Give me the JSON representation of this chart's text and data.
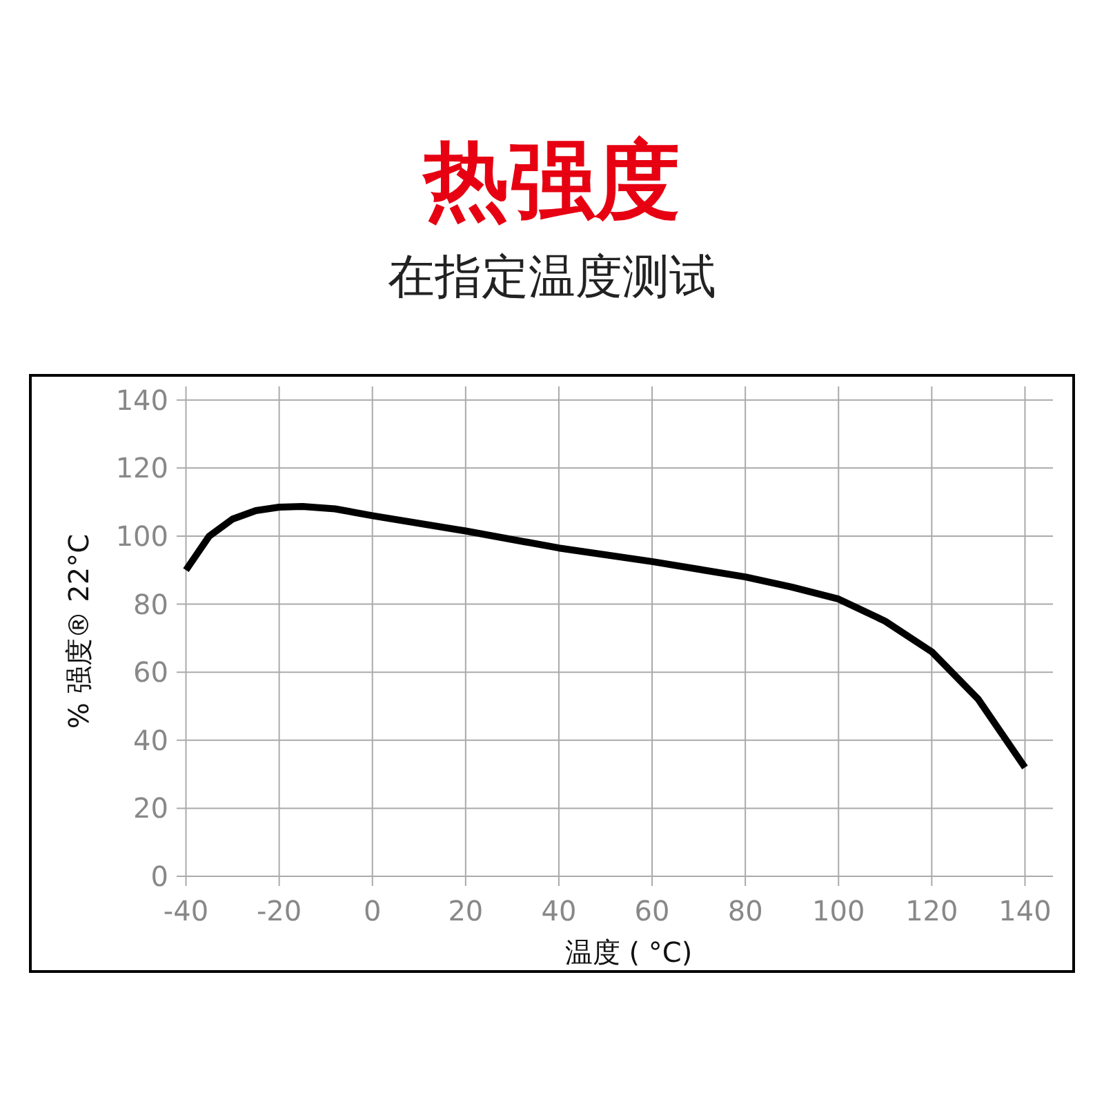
{
  "chart_data": {
    "type": "line",
    "title": "热强度",
    "subtitle": "在指定温度测试",
    "xlabel": "温度 ( °C)",
    "ylabel": "% 强度® 22°C",
    "x": [
      -40,
      -35,
      -30,
      -25,
      -20,
      -15,
      -10,
      -8,
      0,
      20,
      40,
      60,
      80,
      90,
      100,
      110,
      120,
      130,
      140
    ],
    "series": [
      {
        "color": "#000000",
        "values": [
          90,
          100,
          105,
          107.5,
          108.5,
          108.7,
          108.2,
          108,
          106,
          101.5,
          96.5,
          92.5,
          88,
          85,
          81.5,
          75,
          66,
          52,
          32
        ]
      }
    ],
    "xlim": [
      -42,
      146
    ],
    "ylim": [
      0,
      144
    ],
    "xticks": [
      -40,
      -20,
      0,
      20,
      40,
      60,
      80,
      100,
      120,
      140
    ],
    "yticks": [
      0,
      20,
      40,
      60,
      80,
      100,
      120,
      140
    ],
    "grid": true,
    "marker": "none",
    "line_style": "solid"
  }
}
